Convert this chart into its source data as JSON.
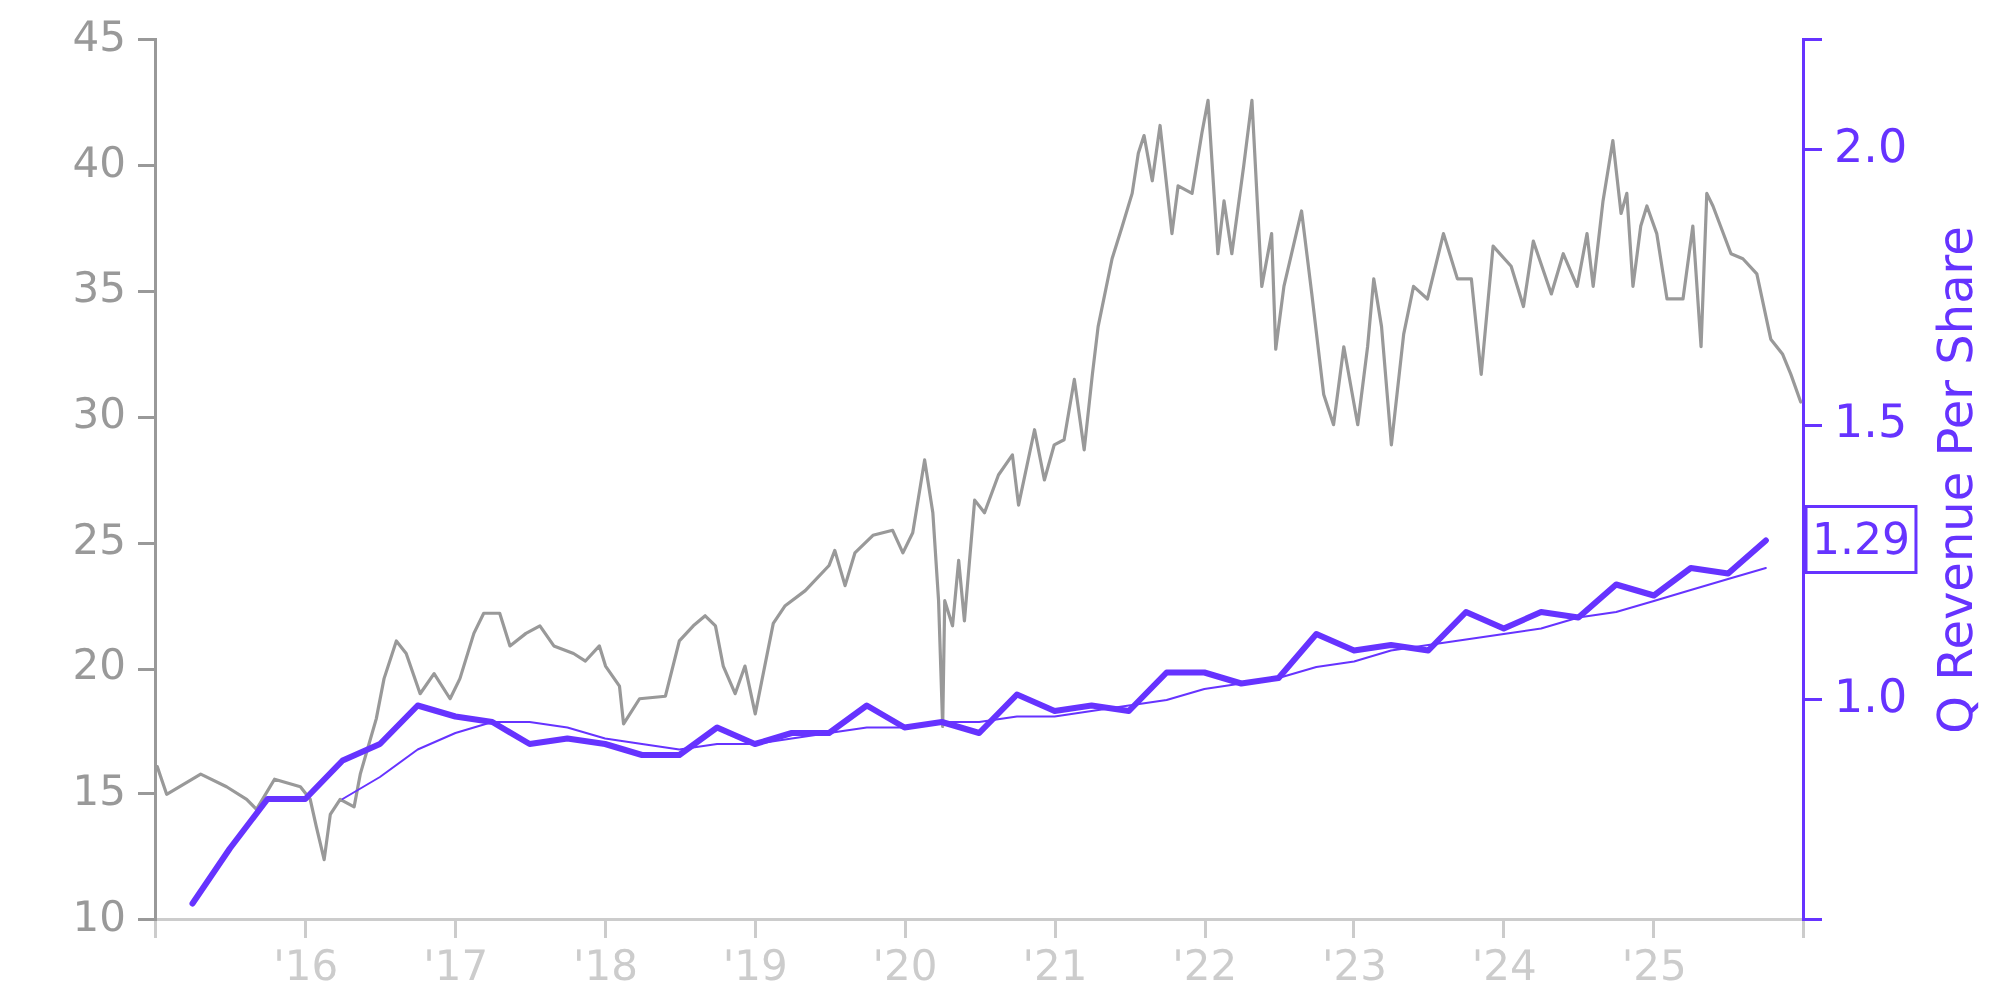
{
  "chart_data": {
    "type": "line",
    "y2label": "Q Revenue Per Share",
    "marker": "none",
    "xlim": [
      "2015-01-01",
      "2026-01-01"
    ],
    "xticks": [
      {
        "value": "2015-01-01",
        "label": null
      },
      {
        "value": "2016-01-01",
        "label": "'16"
      },
      {
        "value": "2017-01-01",
        "label": "'17"
      },
      {
        "value": "2018-01-01",
        "label": "'18"
      },
      {
        "value": "2019-01-01",
        "label": "'19"
      },
      {
        "value": "2020-01-01",
        "label": "'20"
      },
      {
        "value": "2021-01-01",
        "label": "'21"
      },
      {
        "value": "2022-01-01",
        "label": "'22"
      },
      {
        "value": "2023-01-01",
        "label": "'23"
      },
      {
        "value": "2024-01-01",
        "label": "'24"
      },
      {
        "value": "2025-01-01",
        "label": "'25"
      },
      {
        "value": "2026-01-01",
        "label": null
      }
    ],
    "ylim": [
      10,
      45
    ],
    "yticks": [
      10,
      15,
      20,
      25,
      30,
      35,
      40,
      45
    ],
    "y2lim": [
      0.6,
      2.2
    ],
    "y2ticks": [
      {
        "value": 0.6,
        "label": null
      },
      {
        "value": 1,
        "label": "1.0"
      },
      1.5,
      {
        "value": 2,
        "label": "2.0"
      },
      {
        "value": 2.2,
        "label": null
      }
    ],
    "series": [
      {
        "color": "#999999",
        "x": [
          "2015-01-04",
          "2015-01-27",
          "2015-04-20",
          "2015-06-22",
          "2015-08-10",
          "2015-09-03",
          "2015-10-17",
          "2015-12-19",
          "2016-01-12",
          "2016-01-27",
          "2016-02-15",
          "2016-03-01",
          "2016-03-25",
          "2016-04-28",
          "2016-05-13",
          "2016-06-21",
          "2016-07-10",
          "2016-08-09",
          "2016-09-02",
          "2016-10-06",
          "2016-11-09",
          "2016-12-18",
          "2017-01-11",
          "2017-02-14",
          "2017-03-10",
          "2017-04-18",
          "2017-05-13",
          "2017-06-21",
          "2017-07-25",
          "2017-08-28",
          "2017-10-15",
          "2017-11-13",
          "2017-12-17",
          "2018-01-01",
          "2018-02-04",
          "2018-02-14",
          "2018-03-25",
          "2018-05-27",
          "2018-06-30",
          "2018-08-03",
          "2018-09-01",
          "2018-09-26",
          "2018-10-15",
          "2018-11-13",
          "2018-12-07",
          "2019-01-01",
          "2019-02-14",
          "2019-03-15",
          "2019-05-03",
          "2019-06-30",
          "2019-07-14",
          "2019-08-08",
          "2019-09-01",
          "2019-10-15",
          "2019-12-02",
          "2019-12-27",
          "2020-01-20",
          "2020-02-18",
          "2020-03-09",
          "2020-03-23",
          "2020-04-02",
          "2020-04-07",
          "2020-04-26",
          "2020-05-11",
          "2020-05-25",
          "2020-06-19",
          "2020-07-13",
          "2020-08-16",
          "2020-09-19",
          "2020-10-04",
          "2020-11-12",
          "2020-12-06",
          "2020-12-30",
          "2021-01-23",
          "2021-02-17",
          "2021-03-13",
          "2021-04-02",
          "2021-04-16",
          "2021-05-20",
          "2021-06-14",
          "2021-07-08",
          "2021-07-23",
          "2021-08-06",
          "2021-08-26",
          "2021-09-14",
          "2021-10-13",
          "2021-10-28",
          "2021-12-01",
          "2021-12-25",
          "2022-01-09",
          "2022-02-02",
          "2022-02-17",
          "2022-03-08",
          "2022-04-06",
          "2022-04-26",
          "2022-05-20",
          "2022-06-13",
          "2022-06-23",
          "2022-07-13",
          "2022-08-25",
          "2022-09-19",
          "2022-10-18",
          "2022-11-11",
          "2022-12-06",
          "2023-01-09",
          "2023-02-02",
          "2023-02-17",
          "2023-03-08",
          "2023-04-01",
          "2023-05-01",
          "2023-05-25",
          "2023-06-28",
          "2023-08-06",
          "2023-09-09",
          "2023-10-13",
          "2023-11-06",
          "2023-12-05",
          "2024-01-18",
          "2024-02-17",
          "2024-03-12",
          "2024-04-25",
          "2024-05-24",
          "2024-06-27",
          "2024-07-21",
          "2024-08-05",
          "2024-08-29",
          "2024-09-22",
          "2024-10-12",
          "2024-10-26",
          "2024-11-10",
          "2024-11-29",
          "2024-12-14",
          "2025-01-07",
          "2025-02-01",
          "2025-03-12",
          "2025-04-05",
          "2025-04-25",
          "2025-05-09",
          "2025-05-24",
          "2025-07-07",
          "2025-08-05",
          "2025-09-08",
          "2025-10-12",
          "2025-11-10",
          "2025-11-30",
          "2025-12-24"
        ],
        "values": [
          16.1,
          15.0,
          15.8,
          15.3,
          14.8,
          14.4,
          15.6,
          15.3,
          14.8,
          13.7,
          12.4,
          14.2,
          14.8,
          14.5,
          15.8,
          18.0,
          19.6,
          21.1,
          20.6,
          19.0,
          19.8,
          18.8,
          19.6,
          21.4,
          22.2,
          22.2,
          20.9,
          21.4,
          21.7,
          20.9,
          20.6,
          20.3,
          20.9,
          20.1,
          19.3,
          17.8,
          18.8,
          18.9,
          21.1,
          21.7,
          22.1,
          21.7,
          20.1,
          19.0,
          20.1,
          18.2,
          21.8,
          22.5,
          23.1,
          24.1,
          24.7,
          23.3,
          24.6,
          25.3,
          25.5,
          24.6,
          25.4,
          28.3,
          26.2,
          22.7,
          17.7,
          22.7,
          21.7,
          24.3,
          21.9,
          26.7,
          26.2,
          27.7,
          28.5,
          26.5,
          29.5,
          27.5,
          28.9,
          29.1,
          31.5,
          28.7,
          31.7,
          33.6,
          36.3,
          37.6,
          38.9,
          40.5,
          41.2,
          39.4,
          41.6,
          37.3,
          39.2,
          38.9,
          41.3,
          42.6,
          36.5,
          38.6,
          36.5,
          40.0,
          42.6,
          35.2,
          37.3,
          32.7,
          35.2,
          38.2,
          34.9,
          30.9,
          29.7,
          32.8,
          29.7,
          32.8,
          35.5,
          33.6,
          28.9,
          33.3,
          35.2,
          34.7,
          37.3,
          35.5,
          35.5,
          31.7,
          36.8,
          36.0,
          34.4,
          37.0,
          34.9,
          36.5,
          35.2,
          37.3,
          35.2,
          38.6,
          41.0,
          38.1,
          38.9,
          35.2,
          37.6,
          38.4,
          37.3,
          34.7,
          34.7,
          37.6,
          32.8,
          38.9,
          38.4,
          36.5,
          36.3,
          35.7,
          33.1,
          32.5,
          31.7,
          30.6
        ]
      },
      {
        "axis": "y2",
        "color": "#6633ff",
        "x": [
          "2015-03-31",
          "2015-06-30",
          "2015-09-30",
          "2015-12-31",
          "2016-03-31",
          "2016-06-30",
          "2016-09-30",
          "2016-12-31",
          "2017-03-31",
          "2017-06-30",
          "2017-09-30",
          "2017-12-31",
          "2018-03-31",
          "2018-06-30",
          "2018-09-30",
          "2018-12-31",
          "2019-03-31",
          "2019-06-30",
          "2019-09-30",
          "2019-12-31",
          "2020-03-31",
          "2020-06-30",
          "2020-09-30",
          "2020-12-31",
          "2021-03-31",
          "2021-06-30",
          "2021-09-30",
          "2021-12-31",
          "2022-03-31",
          "2022-06-30",
          "2022-09-30",
          "2022-12-31",
          "2023-03-31",
          "2023-06-30",
          "2023-09-30",
          "2023-12-31",
          "2024-03-31",
          "2024-06-30",
          "2024-09-30",
          "2024-12-31",
          "2025-03-31",
          "2025-06-30",
          "2025-09-30"
        ],
        "values": [
          0.63,
          0.73,
          0.82,
          0.82,
          0.89,
          0.92,
          0.99,
          0.97,
          0.96,
          0.92,
          0.93,
          0.92,
          0.9,
          0.9,
          0.95,
          0.92,
          0.94,
          0.94,
          0.99,
          0.95,
          0.96,
          0.94,
          1.01,
          0.98,
          0.99,
          0.98,
          1.05,
          1.05,
          1.03,
          1.04,
          1.12,
          1.09,
          1.1,
          1.09,
          1.16,
          1.13,
          1.16,
          1.15,
          1.21,
          1.19,
          1.24,
          1.23,
          1.29
        ],
        "value_labels": [
          null,
          null,
          null,
          null,
          null,
          null,
          null,
          null,
          null,
          null,
          null,
          null,
          null,
          null,
          null,
          null,
          null,
          null,
          null,
          null,
          null,
          null,
          null,
          null,
          null,
          null,
          null,
          null,
          null,
          null,
          null,
          null,
          null,
          null,
          null,
          null,
          null,
          null,
          null,
          null,
          null,
          null,
          "1.29"
        ]
      },
      {
        "axis": "y2",
        "color": "#6633ff",
        "x": [
          "2016-03-31",
          "2016-06-30",
          "2016-09-30",
          "2016-12-31",
          "2017-03-31",
          "2017-06-30",
          "2017-09-30",
          "2017-12-31",
          "2018-03-31",
          "2018-06-30",
          "2018-09-30",
          "2018-12-31",
          "2019-03-31",
          "2019-06-30",
          "2019-09-30",
          "2019-12-31",
          "2020-03-31",
          "2020-06-30",
          "2020-09-30",
          "2020-12-31",
          "2021-03-31",
          "2021-06-30",
          "2021-09-30",
          "2021-12-31",
          "2022-03-31",
          "2022-06-30",
          "2022-09-30",
          "2022-12-31",
          "2023-03-31",
          "2023-06-30",
          "2023-09-30",
          "2023-12-31",
          "2024-03-31",
          "2024-06-30",
          "2024-09-30",
          "2024-12-31",
          "2025-03-31",
          "2025-06-30",
          "2025-09-30"
        ],
        "values": [
          0.82,
          0.86,
          0.91,
          0.94,
          0.96,
          0.96,
          0.95,
          0.93,
          0.92,
          0.91,
          0.92,
          0.92,
          0.93,
          0.94,
          0.95,
          0.95,
          0.96,
          0.96,
          0.97,
          0.97,
          0.98,
          0.99,
          1.0,
          1.02,
          1.03,
          1.04,
          1.06,
          1.07,
          1.09,
          1.1,
          1.11,
          1.12,
          1.13,
          1.15,
          1.16,
          1.18,
          1.2,
          1.22,
          1.24
        ]
      }
    ]
  }
}
